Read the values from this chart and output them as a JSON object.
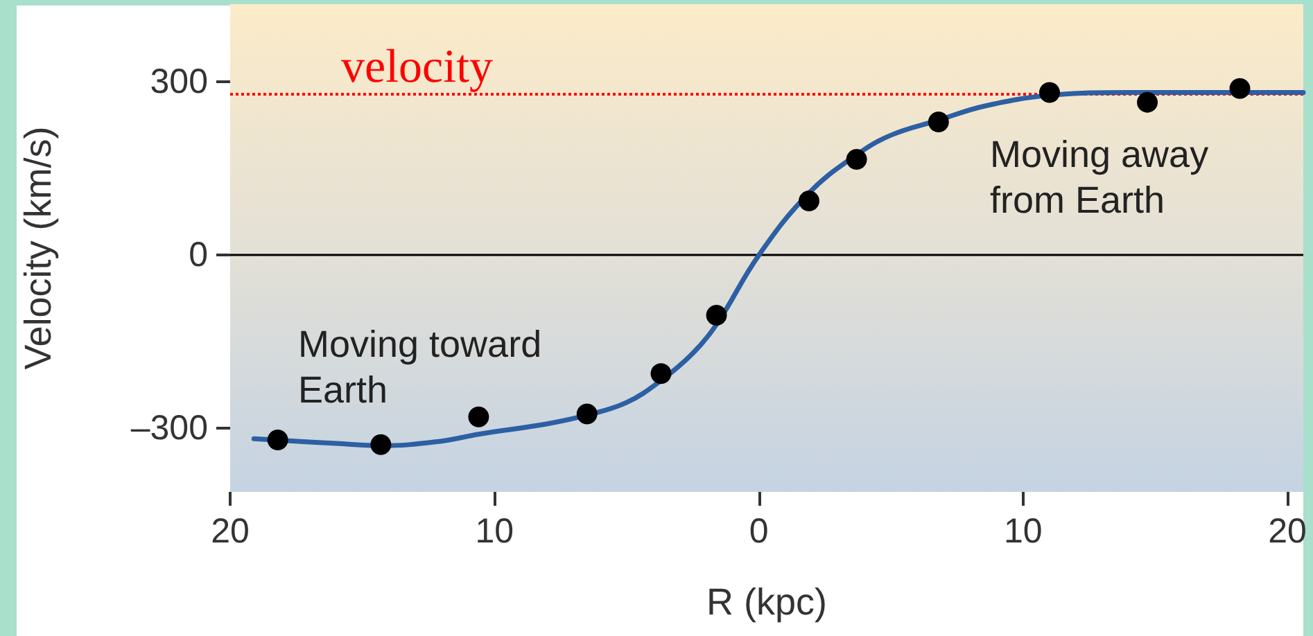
{
  "chart_data": {
    "type": "scatter",
    "xlabel": "R (kpc)",
    "ylabel": "Velocity (km/s)",
    "annotations": [
      "Moving toward Earth",
      "Moving away from Earth"
    ],
    "xlim": [
      -20,
      20.6
    ],
    "ylim": [
      -410,
      435
    ],
    "xticks": [
      {
        "value": -20,
        "label": "20"
      },
      {
        "value": -10,
        "label": "10"
      },
      0,
      10,
      20
    ],
    "yticks": [
      {
        "value": -300,
        "label": "–300"
      },
      0,
      300
    ],
    "grid": false,
    "marker": "circle",
    "series": [
      {
        "type": "line",
        "color": "#2d5fa3",
        "line_style": "solid",
        "marker": "none",
        "x": [
          -19.1,
          -16,
          -14.3,
          -12,
          -10.6,
          -8,
          -6.5,
          -5,
          -3.7,
          -2.5,
          -1.6,
          0,
          1.9,
          3.7,
          5,
          6.8,
          8.5,
          11,
          14,
          17,
          20.6
        ],
        "values": [
          -318,
          -326,
          -330,
          -322,
          -310,
          -292,
          -277,
          -255,
          -217,
          -170,
          -120,
          0,
          108,
          174,
          208,
          234,
          258,
          277,
          282,
          282,
          282
        ]
      },
      {
        "color": "#000000",
        "x": [
          -18.2,
          -14.3,
          -10.6,
          -6.5,
          -3.7,
          -1.6,
          1.9,
          3.7,
          6.8,
          11.0,
          14.7,
          18.2
        ],
        "values": [
          -320,
          -328,
          -280,
          -275,
          -205,
          -104,
          94,
          166,
          231,
          282,
          265,
          289
        ]
      }
    ],
    "ref_lines": [
      {
        "axis": "y",
        "value": 0,
        "color": "#000000",
        "line_style": "solid"
      },
      {
        "axis": "y",
        "value": 280,
        "label": "velocity",
        "color": "#ff0000",
        "line_style": "dotted"
      }
    ]
  }
}
